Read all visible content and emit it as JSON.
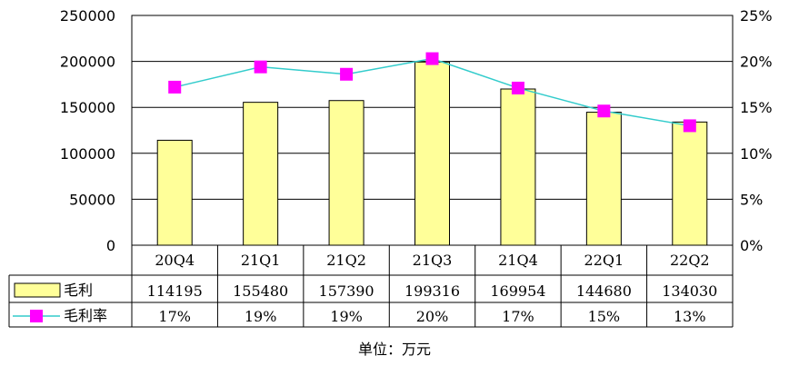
{
  "chart_data": {
    "type": "bar",
    "categories": [
      "20Q4",
      "21Q1",
      "21Q2",
      "21Q3",
      "21Q4",
      "22Q1",
      "22Q2"
    ],
    "series": [
      {
        "name": "毛利",
        "kind": "bar",
        "axis": "left",
        "values": [
          114195,
          155480,
          157390,
          199316,
          169954,
          144680,
          134030
        ],
        "table_labels": [
          "114195",
          "155480",
          "157390",
          "199316",
          "169954",
          "144680",
          "134030"
        ],
        "color": "#FFFF99",
        "border_color": "#000000"
      },
      {
        "name": "毛利率",
        "kind": "line",
        "axis": "right",
        "values": [
          17.2,
          19.4,
          18.6,
          20.3,
          17.1,
          14.6,
          13.0
        ],
        "table_labels": [
          "17%",
          "19%",
          "19%",
          "20%",
          "17%",
          "15%",
          "13%"
        ],
        "line_color": "#33CCCC",
        "marker_color": "#FF00FF"
      }
    ],
    "left_axis": {
      "range": [
        0,
        250000
      ],
      "ticks": [
        "0",
        "50000",
        "100000",
        "150000",
        "200000",
        "250000"
      ],
      "tick_values": [
        0,
        50000,
        100000,
        150000,
        200000,
        250000
      ]
    },
    "right_axis": {
      "range": [
        0,
        25
      ],
      "ticks": [
        "0%",
        "5%",
        "10%",
        "15%",
        "20%",
        "25%"
      ],
      "tick_values": [
        0,
        5,
        10,
        15,
        20,
        25
      ]
    },
    "grid": true,
    "legend_placement": "data-table",
    "unit_note": "单位：万元"
  }
}
